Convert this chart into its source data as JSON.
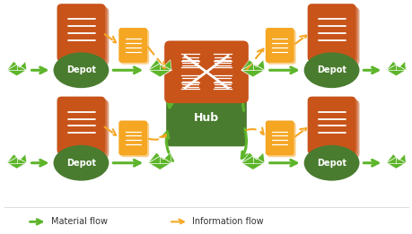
{
  "bg_color": "#ffffff",
  "hub_color": "#4a7c2f",
  "depot_color": "#4a7c2f",
  "doc_box_color": "#c8541a",
  "gold_color": "#f5a623",
  "green_color": "#5db52a",
  "orange_color": "#f5a623",
  "hub_label": "Hub",
  "depot_label": "Depot",
  "legend_material": "Material flow",
  "legend_info": "Information flow",
  "figsize": [
    4.6,
    2.61
  ],
  "dpi": 100
}
